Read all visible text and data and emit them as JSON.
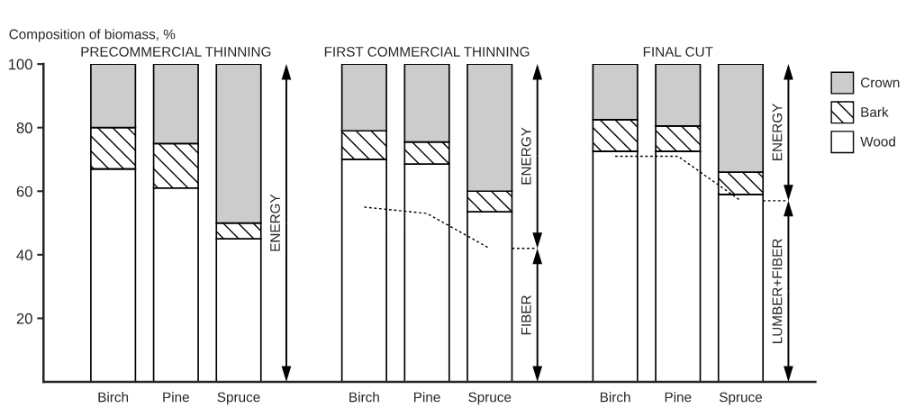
{
  "chart_data": {
    "type": "bar",
    "stacked": true,
    "ylabel": "Composition of biomass, %",
    "categories": [
      "Birch",
      "Pine",
      "Spruce",
      null,
      "Birch",
      "Pine",
      "Spruce",
      null,
      "Birch",
      "Pine",
      "Spruce"
    ],
    "series": [
      {
        "name": "Wood",
        "color": "#ffffff",
        "values": [
          67,
          61,
          45,
          null,
          70,
          68.5,
          53.5,
          null,
          72.5,
          72.5,
          59
        ]
      },
      {
        "name": "Bark",
        "color": "#000000",
        "values": [
          13,
          14,
          5,
          null,
          9,
          7,
          6.5,
          null,
          10,
          8,
          7
        ]
      },
      {
        "name": "Crown",
        "color": "#cccccc",
        "values": [
          20,
          25,
          50,
          null,
          21,
          24.5,
          40,
          null,
          17.5,
          19.5,
          34
        ]
      },
      {
        "type": "line",
        "color": "#000000",
        "line_style": "dashed",
        "values": [
          null,
          null,
          null,
          null,
          55,
          53,
          42,
          null,
          71,
          71,
          57
        ]
      }
    ],
    "ylim": [
      0,
      100
    ],
    "yticks": [
      20,
      40,
      60,
      80,
      100
    ],
    "legend": "right",
    "grid": false,
    "annotations": [
      "PRECOMMERCIAL THINNING",
      "FIRST COMMERCIAL THINNING",
      "FINAL CUT",
      "ENERGY",
      "ENERGY",
      "FIBER",
      "ENERGY",
      "LUMBER+FIBER"
    ]
  }
}
